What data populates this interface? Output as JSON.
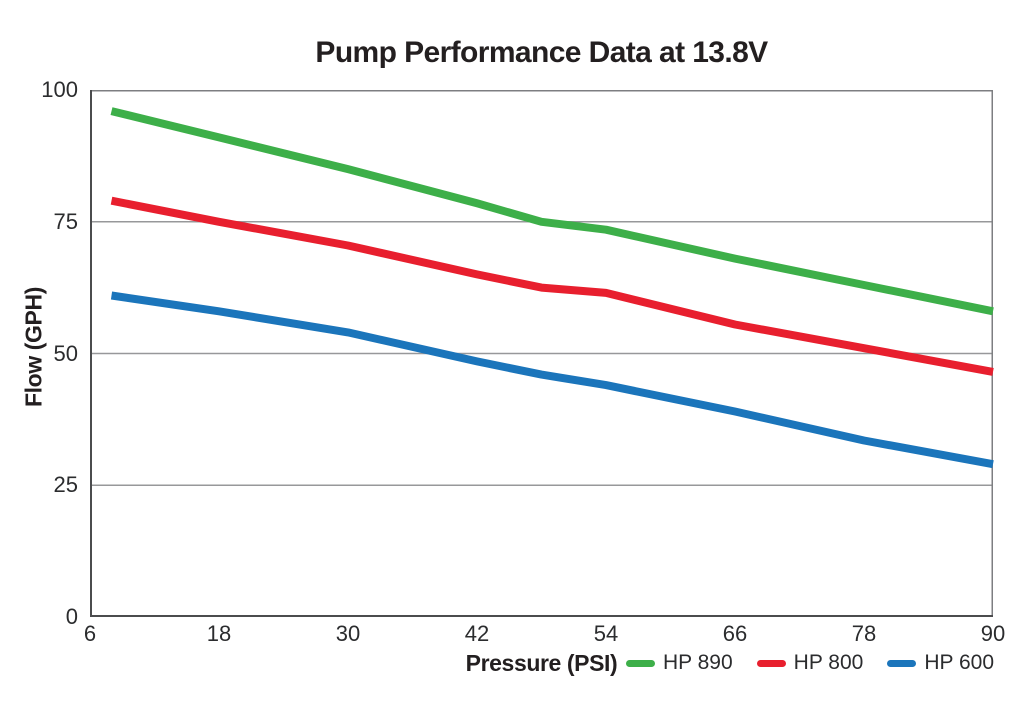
{
  "title": "Pump Performance Data at 13.8V",
  "chart_data": {
    "type": "line",
    "title": "Pump Performance Data at 13.8V",
    "xlabel": "Pressure (PSI)",
    "ylabel": "Flow (GPH)",
    "xlim": [
      6,
      90
    ],
    "ylim": [
      0,
      100
    ],
    "x_ticks": [
      6,
      18,
      30,
      42,
      54,
      66,
      78,
      90
    ],
    "y_ticks": [
      0,
      25,
      50,
      75,
      100
    ],
    "gridlines_y": [
      25,
      50,
      75
    ],
    "grid": "horizontal-only",
    "legend_position": "bottom-right",
    "x": [
      8,
      18,
      30,
      42,
      48,
      54,
      66,
      78,
      90
    ],
    "series": [
      {
        "name": "HP 890",
        "color": "#3daf49",
        "values": [
          96,
          91,
          85,
          78.5,
          75,
          73.5,
          68,
          63,
          58
        ]
      },
      {
        "name": "HP 800",
        "color": "#e81f2e",
        "values": [
          79,
          75,
          70.5,
          65,
          62.5,
          61.5,
          55.5,
          51,
          46.5
        ]
      },
      {
        "name": "HP 600",
        "color": "#1b75bb",
        "values": [
          61,
          58,
          54,
          48.5,
          46,
          44,
          39,
          33.5,
          29
        ]
      }
    ]
  },
  "colors": {
    "background": "#ffffff",
    "title_text": "#231f20",
    "tick_text": "#2b2c2e",
    "axis": "#4b4c4e",
    "plot_border": "#7d7e81",
    "gridline": "#97989a"
  }
}
